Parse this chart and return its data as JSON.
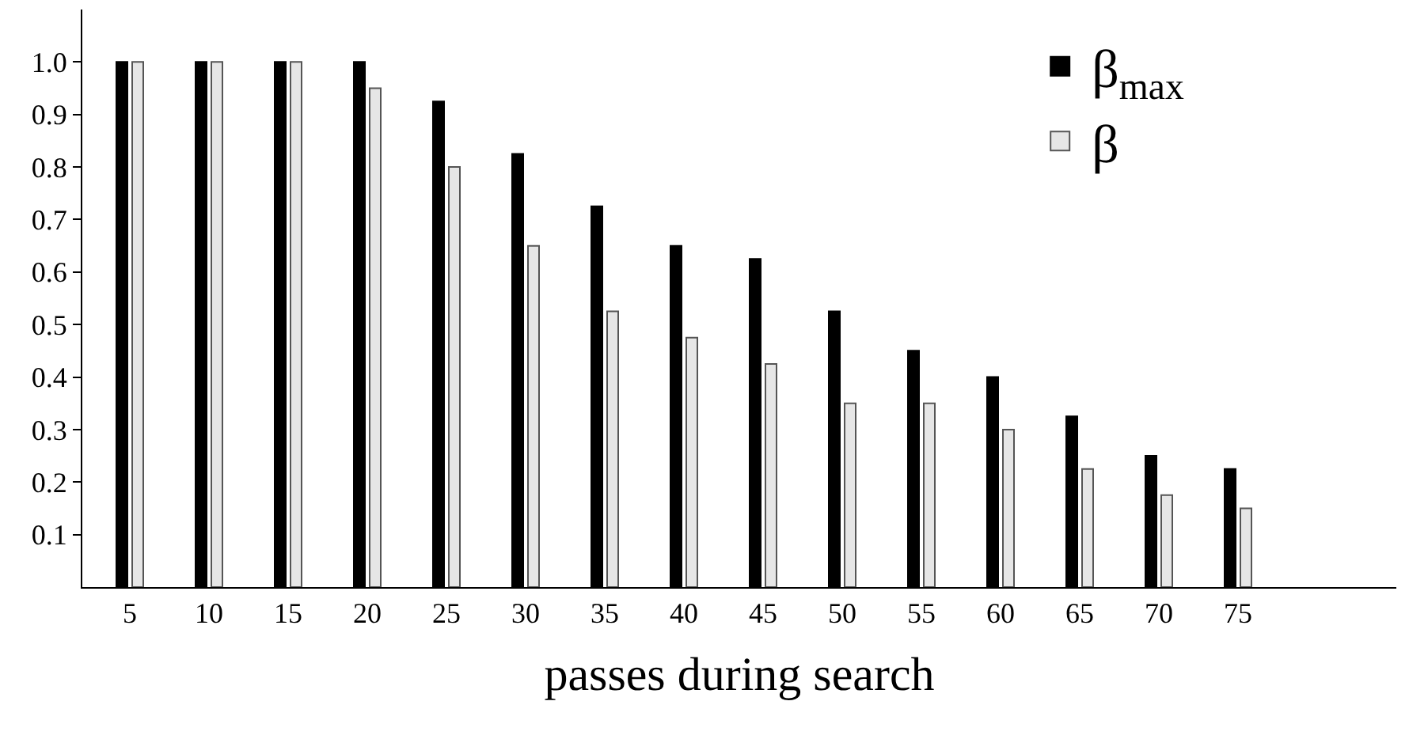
{
  "chart_data": {
    "type": "bar",
    "xlabel": "passes during search",
    "categories": [
      "5",
      "10",
      "15",
      "20",
      "25",
      "30",
      "35",
      "40",
      "45",
      "50",
      "55",
      "60",
      "65",
      "70",
      "75"
    ],
    "series": [
      {
        "name": "β$_{max}$",
        "color": "#000000",
        "values": [
          1.0,
          1.0,
          1.0,
          1.0,
          0.925,
          0.825,
          0.725,
          0.65,
          0.625,
          0.525,
          0.45,
          0.4,
          0.325,
          0.25,
          0.225
        ]
      },
      {
        "name": "β",
        "color": "#e6e6e6",
        "values": [
          1.0,
          1.0,
          1.0,
          0.95,
          0.8,
          0.65,
          0.525,
          0.475,
          0.425,
          0.35,
          0.35,
          0.3,
          0.225,
          0.175,
          0.15
        ]
      }
    ],
    "ylim": [
      0,
      1.1
    ],
    "yticks": [
      0.1,
      0.2,
      0.3,
      0.4,
      0.5,
      0.6,
      0.7,
      0.8,
      0.9,
      {
        "value": 1.0,
        "label": "1.0"
      }
    ],
    "legend": "top right"
  }
}
